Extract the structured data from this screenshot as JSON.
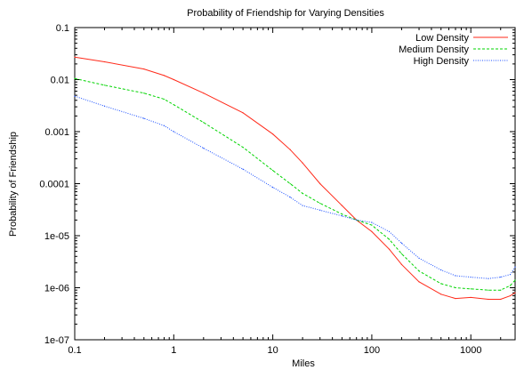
{
  "chart_data": {
    "type": "line",
    "title": "Probability of Friendship for Varying Densities",
    "xlabel": "Miles",
    "ylabel": "Probability of Friendship",
    "xscale": "log",
    "yscale": "log",
    "xlim": [
      0.1,
      2800
    ],
    "ylim": [
      1e-07,
      0.1
    ],
    "grid": false,
    "legend": "top-right",
    "xticks": [
      {
        "value": 0.1,
        "label": "0.1"
      },
      {
        "value": 1,
        "label": "1"
      },
      {
        "value": 10,
        "label": "10"
      },
      {
        "value": 100,
        "label": "100"
      },
      {
        "value": 1000,
        "label": "1000"
      }
    ],
    "yticks": [
      {
        "value": 1e-07,
        "label": "1e-07"
      },
      {
        "value": 1e-06,
        "label": "1e-06"
      },
      {
        "value": 1e-05,
        "label": "1e-05"
      },
      {
        "value": 0.0001,
        "label": "0.0001"
      },
      {
        "value": 0.001,
        "label": "0.001"
      },
      {
        "value": 0.01,
        "label": "0.01"
      },
      {
        "value": 0.1,
        "label": "0.1"
      }
    ],
    "series": [
      {
        "name": "Low Density",
        "color": "#ff2a1a",
        "dash": "solid",
        "x": [
          0.1,
          0.2,
          0.5,
          0.8,
          1,
          2,
          5,
          10,
          15,
          20,
          30,
          50,
          70,
          100,
          150,
          200,
          300,
          500,
          700,
          1000,
          1500,
          2000,
          2500,
          2800
        ],
        "y": [
          0.027,
          0.022,
          0.016,
          0.012,
          0.01,
          0.0055,
          0.0023,
          0.0009,
          0.00045,
          0.00025,
          0.0001,
          3.8e-05,
          2e-05,
          1.2e-05,
          5.5e-06,
          2.8e-06,
          1.3e-06,
          7.5e-07,
          6.2e-07,
          6.5e-07,
          6e-07,
          6e-07,
          7e-07,
          8e-07
        ]
      },
      {
        "name": "Medium Density",
        "color": "#00d400",
        "dash": "dashed",
        "x": [
          0.1,
          0.2,
          0.5,
          0.8,
          1,
          2,
          5,
          10,
          15,
          20,
          30,
          50,
          70,
          100,
          150,
          200,
          300,
          500,
          700,
          1000,
          1500,
          2000,
          2500,
          2800
        ],
        "y": [
          0.0105,
          0.0078,
          0.0055,
          0.0042,
          0.0033,
          0.0015,
          0.0005,
          0.00018,
          0.0001,
          6.5e-05,
          4.2e-05,
          2.6e-05,
          2e-05,
          1.6e-05,
          8.5e-06,
          4.5e-06,
          2.1e-06,
          1.2e-06,
          1e-06,
          9.5e-07,
          9e-07,
          9e-07,
          1.1e-06,
          1.4e-06
        ]
      },
      {
        "name": "High Density",
        "color": "#1a4fff",
        "dash": "dotted",
        "x": [
          0.1,
          0.2,
          0.5,
          0.8,
          1,
          2,
          5,
          10,
          15,
          20,
          30,
          50,
          70,
          100,
          150,
          200,
          300,
          500,
          700,
          1000,
          1500,
          2000,
          2500,
          2800
        ],
        "y": [
          0.0048,
          0.0031,
          0.0018,
          0.0013,
          0.001,
          0.00048,
          0.00019,
          8.5e-05,
          5.5e-05,
          3.8e-05,
          3.1e-05,
          2.4e-05,
          2e-05,
          1.8e-05,
          1.2e-05,
          7.2e-06,
          3.7e-06,
          2.2e-06,
          1.7e-06,
          1.6e-06,
          1.5e-06,
          1.6e-06,
          1.8e-06,
          2.5e-06
        ]
      }
    ]
  }
}
